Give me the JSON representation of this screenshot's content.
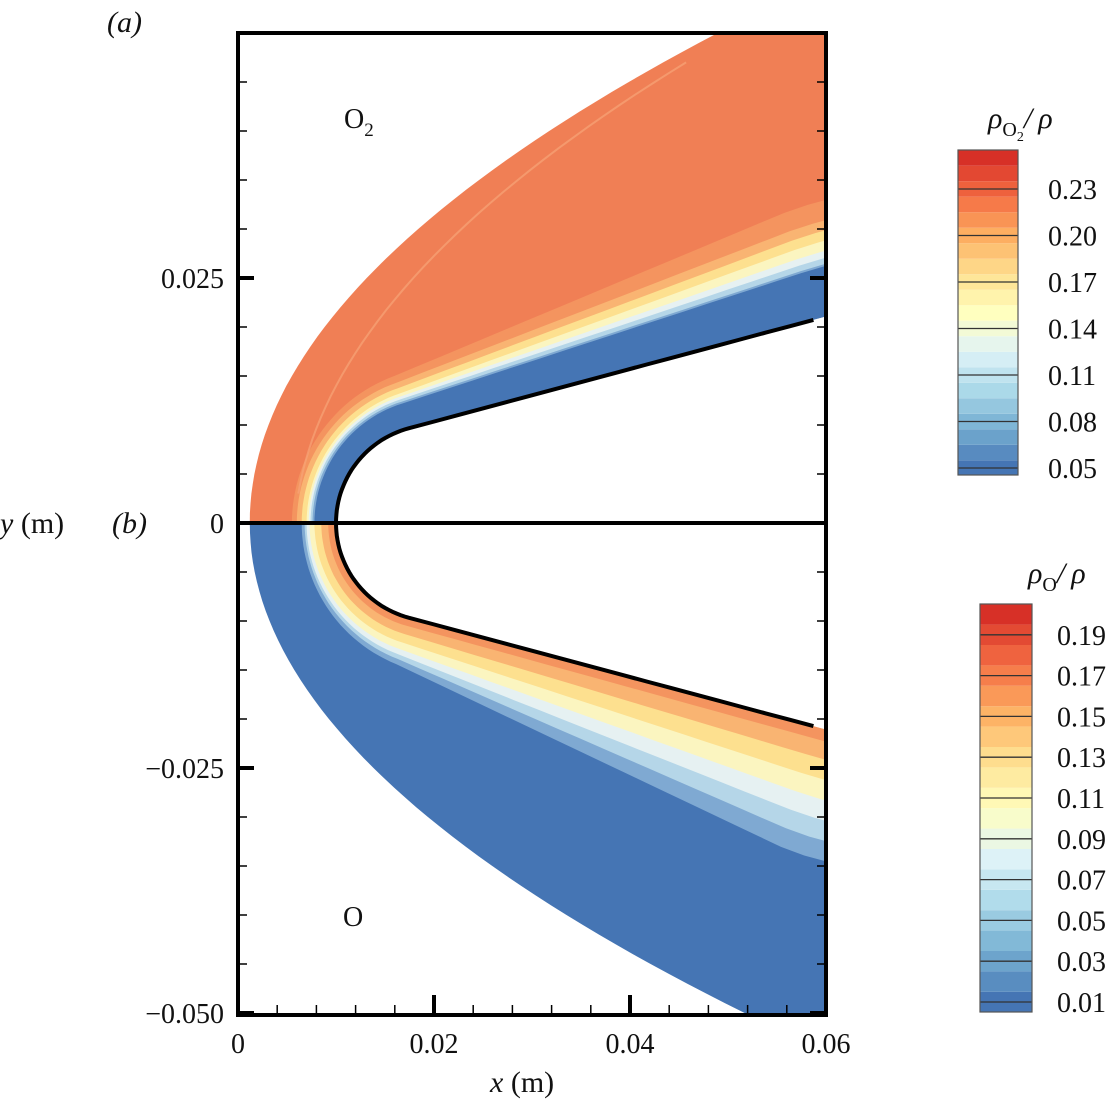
{
  "chart_data": {
    "type": "heatmap",
    "subtype": "contour",
    "panels": [
      {
        "label": "(a)",
        "species": {
          "base": "O",
          "sub": "2"
        },
        "half": "upper",
        "freestream_fill": "#f07f55"
      },
      {
        "label": "(b)",
        "species": {
          "base": "O",
          "sub": ""
        },
        "half": "lower",
        "freestream_fill": "#4575b4"
      }
    ],
    "xlabel": {
      "var": "x",
      "unit": " (m)"
    },
    "ylabel": {
      "var": "y",
      "unit": " (m)"
    },
    "xlim": [
      0,
      0.06
    ],
    "ylim": [
      -0.05,
      0.05
    ],
    "xticks": [
      {
        "v": 0,
        "t": "0"
      },
      {
        "v": 0.02,
        "t": "0.02"
      },
      {
        "v": 0.04,
        "t": "0.04"
      },
      {
        "v": 0.06,
        "t": "0.06"
      }
    ],
    "yticks": [
      {
        "v": 0.025,
        "t": "0.025"
      },
      {
        "v": 0,
        "t": "0"
      },
      {
        "v": -0.025,
        "t": "−0.025"
      },
      {
        "v": -0.05,
        "t": "−0.050"
      }
    ],
    "body": {
      "nose_x": 0.01,
      "nose_radius": 0.01,
      "cone_half_angle_deg": 15
    },
    "colorbars": [
      {
        "title": {
          "rho": "ρ",
          "base": "O",
          "sub": "2",
          "tail": "/ ρ"
        },
        "range": [
          0.045,
          0.255
        ],
        "step": 0.01,
        "ticks": [
          "0.23",
          "0.20",
          "0.17",
          "0.14",
          "0.11",
          "0.08",
          "0.05"
        ],
        "tick_values": [
          0.23,
          0.2,
          0.17,
          0.14,
          0.11,
          0.08,
          0.05
        ]
      },
      {
        "title": {
          "rho": "ρ",
          "base": "O",
          "sub": "",
          "tail": "/ ρ"
        },
        "range": [
          0.005,
          0.205
        ],
        "step": 0.01,
        "ticks": [
          "0.19",
          "0.17",
          "0.15",
          "0.13",
          "0.11",
          "0.09",
          "0.07",
          "0.05",
          "0.03",
          "0.01"
        ],
        "tick_values": [
          0.19,
          0.17,
          0.15,
          0.13,
          0.11,
          0.09,
          0.07,
          0.05,
          0.03,
          0.01
        ]
      }
    ],
    "colormap": [
      "#4575b4",
      "#74add1",
      "#abd9e9",
      "#e0f3f8",
      "#ffffbf",
      "#fee090",
      "#fdae61",
      "#f46d43",
      "#d73027"
    ]
  }
}
